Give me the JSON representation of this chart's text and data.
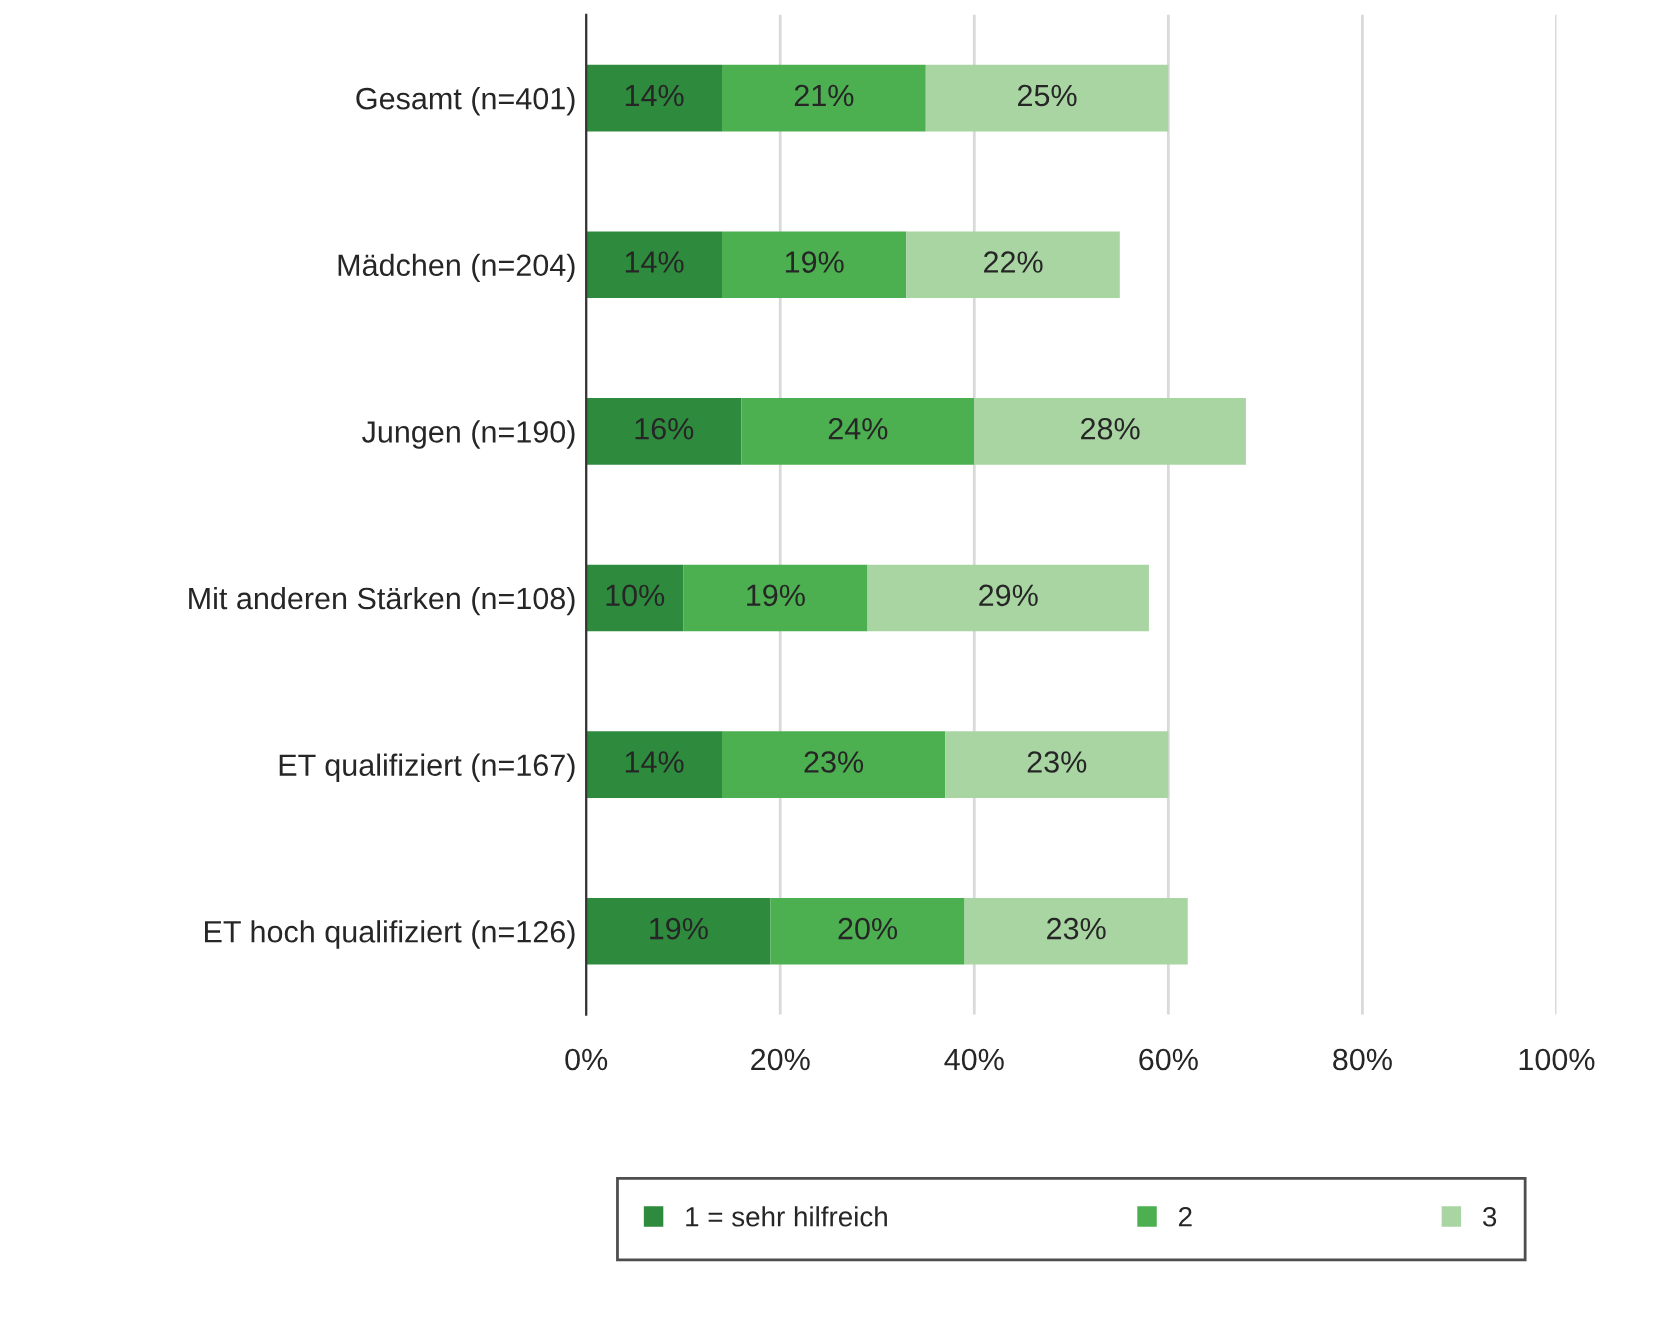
{
  "chart_data": {
    "type": "bar",
    "orientation": "horizontal",
    "stacked": true,
    "categories": [
      "Gesamt (n=401)",
      "Mädchen (n=204)",
      "Jungen (n=190)",
      "Mit anderen Stärken (n=108)",
      "ET qualifiziert (n=167)",
      "ET hoch qualifiziert (n=126)"
    ],
    "series": [
      {
        "name": "1 = sehr hilfreich",
        "color": "#2e8b3e",
        "values": [
          14,
          14,
          16,
          10,
          14,
          19
        ],
        "value_labels": [
          "14%",
          "14%",
          "16%",
          "10%",
          "14%",
          "19%"
        ]
      },
      {
        "name": "2",
        "color": "#4caf50",
        "values": [
          21,
          19,
          24,
          19,
          23,
          20
        ],
        "value_labels": [
          "21%",
          "19%",
          "24%",
          "19%",
          "23%",
          "20%"
        ]
      },
      {
        "name": "3",
        "color": "#a8d5a2",
        "values": [
          25,
          22,
          28,
          29,
          23,
          23
        ],
        "value_labels": [
          "25%",
          "22%",
          "28%",
          "29%",
          "23%",
          "23%"
        ]
      }
    ],
    "xlim": [
      0,
      100
    ],
    "xticks": [
      {
        "value": 0,
        "label": "0%"
      },
      {
        "value": 20,
        "label": "20%"
      },
      {
        "value": 40,
        "label": "40%"
      },
      {
        "value": 60,
        "label": "60%"
      },
      {
        "value": 80,
        "label": "80%"
      },
      {
        "value": 100,
        "label": "100%"
      }
    ],
    "grid": "x",
    "legend": "bottom"
  }
}
